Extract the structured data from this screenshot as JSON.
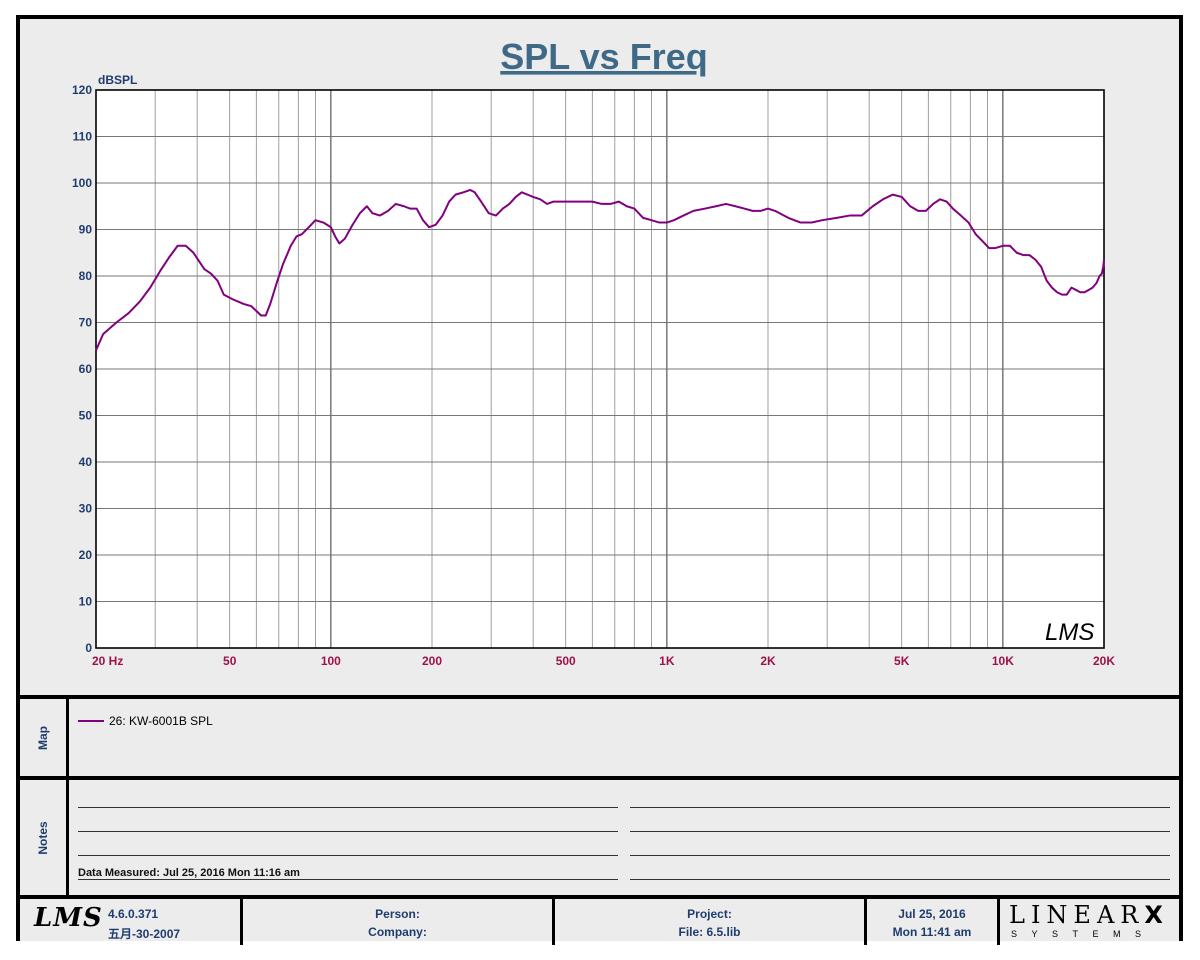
{
  "chart_data": {
    "type": "line",
    "title": "SPL vs Freq",
    "ylabel": "dBSPL",
    "xlabel": "",
    "x_scale": "log",
    "xlim": [
      20,
      20000
    ],
    "ylim": [
      0,
      120
    ],
    "grid": true,
    "y_ticks": [
      "0",
      "10",
      "20",
      "30",
      "40",
      "50",
      "60",
      "70",
      "80",
      "90",
      "100",
      "110",
      "120"
    ],
    "x_ticks": [
      {
        "v": 20,
        "label": "20  Hz"
      },
      {
        "v": 50,
        "label": "50"
      },
      {
        "v": 100,
        "label": "100"
      },
      {
        "v": 200,
        "label": "200"
      },
      {
        "v": 500,
        "label": "500"
      },
      {
        "v": 1000,
        "label": "1K"
      },
      {
        "v": 2000,
        "label": "2K"
      },
      {
        "v": 5000,
        "label": "5K"
      },
      {
        "v": 10000,
        "label": "10K"
      },
      {
        "v": 20000,
        "label": "20K"
      }
    ],
    "series": [
      {
        "name": "26: KW-6001B  SPL",
        "color": "#800080",
        "points": [
          [
            20,
            64
          ],
          [
            21,
            67.5
          ],
          [
            23,
            70
          ],
          [
            25,
            72
          ],
          [
            27,
            74.5
          ],
          [
            29,
            77.5
          ],
          [
            31,
            81
          ],
          [
            33,
            84
          ],
          [
            35,
            86.5
          ],
          [
            37,
            86.5
          ],
          [
            39,
            85
          ],
          [
            42,
            81.5
          ],
          [
            44,
            80.5
          ],
          [
            46,
            79
          ],
          [
            48,
            76
          ],
          [
            51,
            75
          ],
          [
            55,
            74
          ],
          [
            58,
            73.5
          ],
          [
            60,
            72.5
          ],
          [
            62,
            71.5
          ],
          [
            64,
            71.5
          ],
          [
            66,
            74
          ],
          [
            69,
            78.5
          ],
          [
            72,
            82.5
          ],
          [
            76,
            86.5
          ],
          [
            79,
            88.5
          ],
          [
            82,
            89
          ],
          [
            86,
            90.5
          ],
          [
            90,
            92
          ],
          [
            95,
            91.5
          ],
          [
            100,
            90.5
          ],
          [
            103,
            88.5
          ],
          [
            106,
            87
          ],
          [
            110,
            88
          ],
          [
            116,
            91
          ],
          [
            122,
            93.5
          ],
          [
            128,
            95
          ],
          [
            133,
            93.5
          ],
          [
            140,
            93
          ],
          [
            148,
            94
          ],
          [
            156,
            95.5
          ],
          [
            165,
            95
          ],
          [
            172,
            94.5
          ],
          [
            180,
            94.5
          ],
          [
            188,
            92
          ],
          [
            196,
            90.5
          ],
          [
            205,
            91
          ],
          [
            215,
            93
          ],
          [
            225,
            96
          ],
          [
            235,
            97.5
          ],
          [
            248,
            98
          ],
          [
            260,
            98.5
          ],
          [
            268,
            98
          ],
          [
            280,
            96
          ],
          [
            295,
            93.5
          ],
          [
            310,
            93
          ],
          [
            325,
            94.5
          ],
          [
            340,
            95.5
          ],
          [
            355,
            97
          ],
          [
            370,
            98
          ],
          [
            385,
            97.5
          ],
          [
            400,
            97
          ],
          [
            420,
            96.5
          ],
          [
            440,
            95.5
          ],
          [
            460,
            96
          ],
          [
            490,
            96
          ],
          [
            520,
            96
          ],
          [
            560,
            96
          ],
          [
            600,
            96
          ],
          [
            640,
            95.5
          ],
          [
            680,
            95.5
          ],
          [
            720,
            96
          ],
          [
            760,
            95
          ],
          [
            800,
            94.5
          ],
          [
            850,
            92.5
          ],
          [
            900,
            92
          ],
          [
            950,
            91.5
          ],
          [
            1000,
            91.5
          ],
          [
            1050,
            92
          ],
          [
            1120,
            93
          ],
          [
            1200,
            94
          ],
          [
            1300,
            94.5
          ],
          [
            1400,
            95
          ],
          [
            1500,
            95.5
          ],
          [
            1600,
            95
          ],
          [
            1700,
            94.5
          ],
          [
            1800,
            94
          ],
          [
            1900,
            94
          ],
          [
            2000,
            94.5
          ],
          [
            2100,
            94
          ],
          [
            2300,
            92.5
          ],
          [
            2500,
            91.5
          ],
          [
            2700,
            91.5
          ],
          [
            2900,
            92
          ],
          [
            3200,
            92.5
          ],
          [
            3500,
            93
          ],
          [
            3800,
            93
          ],
          [
            4100,
            95
          ],
          [
            4400,
            96.5
          ],
          [
            4700,
            97.5
          ],
          [
            5000,
            97
          ],
          [
            5300,
            95
          ],
          [
            5600,
            94
          ],
          [
            5900,
            94
          ],
          [
            6200,
            95.5
          ],
          [
            6500,
            96.5
          ],
          [
            6800,
            96
          ],
          [
            7100,
            94.5
          ],
          [
            7500,
            93
          ],
          [
            7900,
            91.5
          ],
          [
            8300,
            89
          ],
          [
            8700,
            87.5
          ],
          [
            9100,
            86
          ],
          [
            9500,
            86
          ],
          [
            10000,
            86.5
          ],
          [
            10500,
            86.5
          ],
          [
            11000,
            85
          ],
          [
            11500,
            84.5
          ],
          [
            12000,
            84.5
          ],
          [
            12500,
            83.5
          ],
          [
            13000,
            82
          ],
          [
            13500,
            79
          ],
          [
            14000,
            77.5
          ],
          [
            14500,
            76.5
          ],
          [
            15000,
            76
          ],
          [
            15500,
            76
          ],
          [
            16000,
            77.5
          ],
          [
            16500,
            77
          ],
          [
            17000,
            76.5
          ],
          [
            17500,
            76.5
          ],
          [
            18000,
            77
          ],
          [
            18500,
            77.5
          ],
          [
            19000,
            78.5
          ],
          [
            19400,
            80
          ],
          [
            19700,
            80.5
          ],
          [
            19900,
            82
          ],
          [
            20000,
            83.5
          ]
        ]
      }
    ]
  },
  "map": {
    "label": "Map",
    "legend_entry": "26: KW-6001B  SPL",
    "legend_color": "#800080"
  },
  "notes": {
    "label": "Notes",
    "data_measured": "Data Measured: Jul 25, 2016  Mon 11:16 am"
  },
  "footer": {
    "lms_mark": "LMS",
    "version": "4.6.0.371",
    "build_date": "五月-30-2007",
    "person_label": "Person:",
    "company_label": "Company:",
    "project_label": "Project:",
    "file_label": "File: 6.5.lib",
    "date": "Jul 25, 2016",
    "time": "Mon 11:41 am",
    "brand_name": "LINEAR",
    "brand_x": "X",
    "brand_sub": "SYSTEMS"
  },
  "colors": {
    "title": "#3e6a87",
    "y_tick": "#1f3c6e",
    "x_tick": "#a0104a",
    "curve": "#800080"
  }
}
